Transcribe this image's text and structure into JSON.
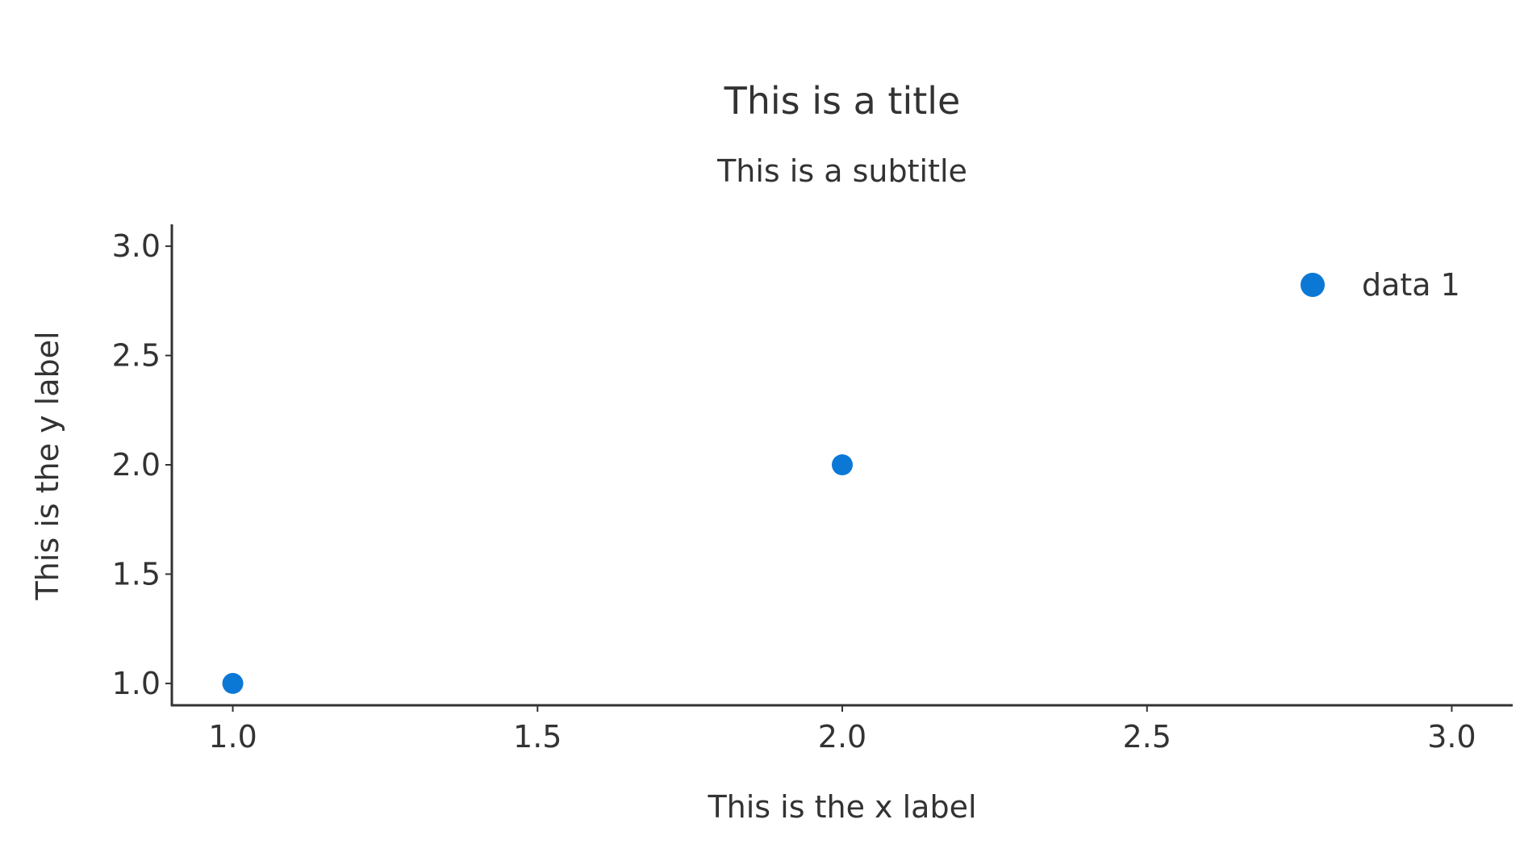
{
  "chart_data": {
    "type": "scatter",
    "title": "This is a title",
    "subtitle": "This is a subtitle",
    "xlabel": "This is the x label",
    "ylabel": "This is the y label",
    "xlim": [
      0.9,
      3.1
    ],
    "ylim": [
      0.9,
      3.1
    ],
    "xticks": [
      1.0,
      1.5,
      2.0,
      2.5,
      3.0
    ],
    "yticks": [
      1.0,
      1.5,
      2.0,
      2.5,
      3.0
    ],
    "xtick_labels": [
      "1.0",
      "1.5",
      "2.0",
      "2.5",
      "3.0"
    ],
    "ytick_labels": [
      "1.0",
      "1.5",
      "2.0",
      "2.5",
      "3.0"
    ],
    "grid": false,
    "legend_position": "top-right",
    "series": [
      {
        "name": "data 1",
        "color": "#0c78d6",
        "points": [
          {
            "x": 1.0,
            "y": 1.0
          },
          {
            "x": 2.0,
            "y": 2.0
          }
        ]
      }
    ]
  }
}
